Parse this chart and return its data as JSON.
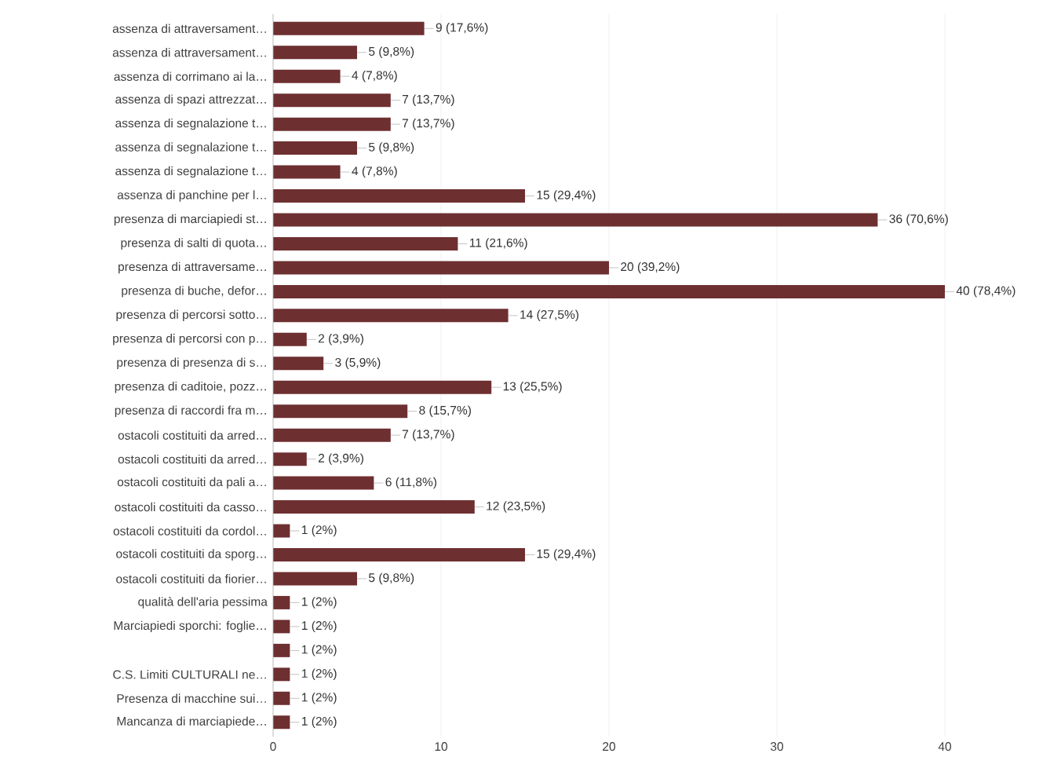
{
  "chart_data": {
    "type": "bar",
    "orientation": "horizontal",
    "categories": [
      "assenza di attraversament…",
      "assenza di attraversament…",
      "assenza di corrimano ai la…",
      "assenza di spazi attrezzat…",
      "assenza di segnalazione t…",
      "assenza di segnalazione t…",
      "assenza di segnalazione t…",
      "assenza di panchine per l…",
      "presenza di marciapiedi st…",
      "presenza di salti di quota…",
      "presenza di attraversame…",
      "presenza di buche, defor…",
      "presenza di percorsi sotto…",
      "presenza di percorsi con p…",
      "presenza di presenza di s…",
      "presenza di caditoie, pozz…",
      "presenza di raccordi fra m…",
      "ostacoli costituiti da arred…",
      "ostacoli costituiti da arred…",
      "ostacoli costituiti da pali a…",
      "ostacoli costituiti da casso…",
      "ostacoli costituiti da cordol…",
      "ostacoli costituiti da sporg…",
      "ostacoli costituiti da fiorier…",
      "qualità dell'aria pessima",
      "Marciapiedi sporchi: foglie…",
      null,
      "C.S. Limiti CULTURALI ne…",
      "Presenza di macchine sui…",
      "Mancanza di marciapiede…"
    ],
    "values": [
      9,
      5,
      4,
      7,
      7,
      5,
      4,
      15,
      36,
      11,
      20,
      40,
      14,
      2,
      3,
      13,
      8,
      7,
      2,
      6,
      12,
      1,
      15,
      5,
      1,
      1,
      1,
      1,
      1,
      1
    ],
    "value_labels": [
      "9 (17,6%)",
      "5 (9,8%)",
      "4 (7,8%)",
      "7 (13,7%)",
      "7 (13,7%)",
      "5 (9,8%)",
      "4 (7,8%)",
      "15 (29,4%)",
      "36 (70,6%)",
      "11 (21,6%)",
      "20 (39,2%)",
      "40 (78,4%)",
      "14 (27,5%)",
      "2 (3,9%)",
      "3 (5,9%)",
      "13 (25,5%)",
      "8 (15,7%)",
      "7 (13,7%)",
      "2 (3,9%)",
      "6 (11,8%)",
      "12 (23,5%)",
      "1 (2%)",
      "15 (29,4%)",
      "5 (9,8%)",
      "1 (2%)",
      "1 (2%)",
      "1 (2%)",
      "1 (2%)",
      "1 (2%)",
      "1 (2%)"
    ],
    "color": "#6e2f31",
    "xlim": [
      0,
      40
    ],
    "xticks": [
      0,
      10,
      20,
      30,
      40
    ],
    "grid": "x"
  }
}
